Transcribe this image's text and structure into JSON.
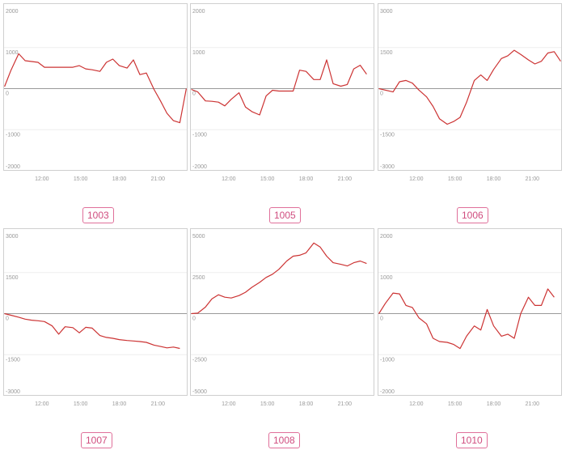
{
  "chart_data": [
    {
      "type": "line",
      "label": "1003",
      "color": "#cc3333",
      "ylim": [
        -2000,
        2000
      ],
      "yticks": [
        2000,
        1000,
        0,
        -1000,
        -2000
      ],
      "xlim": [
        9.0,
        23.3
      ],
      "xticks": [
        {
          "x": 12,
          "label": "12:00"
        },
        {
          "x": 15,
          "label": "15:00"
        },
        {
          "x": 18,
          "label": "18:00"
        },
        {
          "x": 21,
          "label": "21:00"
        }
      ],
      "x": [
        9.1,
        9.6,
        10.2,
        10.7,
        11.2,
        11.7,
        12.2,
        12.8,
        13.3,
        13.8,
        14.4,
        14.9,
        15.4,
        15.9,
        16.5,
        17.0,
        17.5,
        18.0,
        18.6,
        19.1,
        19.6,
        20.1,
        20.7,
        21.2,
        21.7,
        22.2,
        22.7,
        23.2
      ],
      "values": [
        50,
        450,
        850,
        680,
        660,
        640,
        520,
        520,
        520,
        520,
        520,
        560,
        480,
        460,
        420,
        640,
        720,
        560,
        500,
        700,
        340,
        380,
        -20,
        -300,
        -600,
        -780,
        -830,
        0
      ]
    },
    {
      "type": "line",
      "label": "1005",
      "color": "#cc3333",
      "ylim": [
        -2000,
        2000
      ],
      "yticks": [
        2000,
        1000,
        0,
        -1000,
        -2000
      ],
      "xlim": [
        9.0,
        23.3
      ],
      "xticks": [
        {
          "x": 12,
          "label": "12:00"
        },
        {
          "x": 15,
          "label": "15:00"
        },
        {
          "x": 18,
          "label": "18:00"
        },
        {
          "x": 21,
          "label": "21:00"
        }
      ],
      "x": [
        9.1,
        9.6,
        10.2,
        10.7,
        11.2,
        11.7,
        12.2,
        12.8,
        13.3,
        13.8,
        14.4,
        14.9,
        15.4,
        15.9,
        16.5,
        17.0,
        17.5,
        18.0,
        18.6,
        19.1,
        19.6,
        20.1,
        20.7,
        21.2,
        21.7,
        22.2,
        22.7
      ],
      "values": [
        -20,
        -80,
        -300,
        -310,
        -330,
        -420,
        -260,
        -100,
        -450,
        -560,
        -640,
        -180,
        -40,
        -60,
        -60,
        -60,
        450,
        420,
        220,
        220,
        700,
        120,
        60,
        100,
        480,
        570,
        350
      ]
    },
    {
      "type": "line",
      "label": "1006",
      "color": "#cc3333",
      "ylim": [
        -3000,
        3000
      ],
      "yticks": [
        3000,
        1500,
        0,
        -1500,
        -3000
      ],
      "xlim": [
        9.0,
        23.3
      ],
      "xticks": [
        {
          "x": 12,
          "label": "12:00"
        },
        {
          "x": 15,
          "label": "15:00"
        },
        {
          "x": 18,
          "label": "18:00"
        },
        {
          "x": 21,
          "label": "21:00"
        }
      ],
      "x": [
        9.1,
        10.2,
        10.7,
        11.2,
        11.7,
        12.2,
        12.8,
        13.3,
        13.8,
        14.4,
        14.9,
        15.4,
        15.9,
        16.5,
        17.0,
        17.5,
        18.0,
        18.6,
        19.1,
        19.6,
        20.1,
        20.7,
        21.2,
        21.7,
        22.2,
        22.7,
        23.2
      ],
      "values": [
        0,
        -120,
        250,
        300,
        200,
        -50,
        -300,
        -650,
        -1100,
        -1300,
        -1200,
        -1050,
        -500,
        300,
        500,
        300,
        700,
        1100,
        1200,
        1400,
        1250,
        1050,
        900,
        1000,
        1300,
        1350,
        1000
      ]
    },
    {
      "type": "line",
      "label": "1007",
      "color": "#cc3333",
      "ylim": [
        -3000,
        3000
      ],
      "yticks": [
        3000,
        1500,
        0,
        -1500,
        -3000
      ],
      "xlim": [
        9.0,
        23.3
      ],
      "xticks": [
        {
          "x": 12,
          "label": "12:00"
        },
        {
          "x": 15,
          "label": "15:00"
        },
        {
          "x": 18,
          "label": "18:00"
        },
        {
          "x": 21,
          "label": "21:00"
        }
      ],
      "x": [
        9.1,
        9.6,
        10.2,
        10.7,
        11.2,
        11.7,
        12.2,
        12.8,
        13.3,
        13.8,
        14.4,
        14.9,
        15.4,
        15.9,
        16.5,
        17.0,
        17.5,
        18.0,
        18.6,
        19.1,
        19.6,
        20.1,
        20.7,
        21.2,
        21.7,
        22.2,
        22.7
      ],
      "values": [
        0,
        -60,
        -130,
        -200,
        -240,
        -260,
        -290,
        -450,
        -750,
        -480,
        -510,
        -700,
        -500,
        -530,
        -800,
        -870,
        -900,
        -950,
        -980,
        -1000,
        -1020,
        -1050,
        -1150,
        -1200,
        -1250,
        -1220,
        -1270
      ]
    },
    {
      "type": "line",
      "label": "1008",
      "color": "#cc3333",
      "ylim": [
        -5000,
        5000
      ],
      "yticks": [
        5000,
        2500,
        0,
        -2500,
        -5000
      ],
      "xlim": [
        9.0,
        23.3
      ],
      "xticks": [
        {
          "x": 12,
          "label": "12:00"
        },
        {
          "x": 15,
          "label": "15:00"
        },
        {
          "x": 18,
          "label": "18:00"
        },
        {
          "x": 21,
          "label": "21:00"
        }
      ],
      "x": [
        9.1,
        9.6,
        10.2,
        10.7,
        11.2,
        11.7,
        12.2,
        12.8,
        13.3,
        13.8,
        14.4,
        14.9,
        15.4,
        15.9,
        16.5,
        17.0,
        17.5,
        18.0,
        18.6,
        19.1,
        19.6,
        20.1,
        20.7,
        21.2,
        21.7,
        22.2,
        22.7
      ],
      "values": [
        0,
        30,
        400,
        900,
        1150,
        1000,
        950,
        1100,
        1300,
        1600,
        1900,
        2200,
        2400,
        2700,
        3200,
        3500,
        3550,
        3700,
        4300,
        4050,
        3500,
        3100,
        3000,
        2900,
        3100,
        3200,
        3050
      ]
    },
    {
      "type": "line",
      "label": "1010",
      "color": "#cc3333",
      "ylim": [
        -2000,
        2000
      ],
      "yticks": [
        2000,
        1000,
        0,
        -1000,
        -2000
      ],
      "xlim": [
        9.0,
        23.3
      ],
      "xticks": [
        {
          "x": 12,
          "label": "12:00"
        },
        {
          "x": 15,
          "label": "15:00"
        },
        {
          "x": 18,
          "label": "18:00"
        },
        {
          "x": 21,
          "label": "21:00"
        }
      ],
      "x": [
        9.1,
        9.6,
        10.2,
        10.7,
        11.2,
        11.7,
        12.2,
        12.8,
        13.3,
        13.8,
        14.4,
        14.9,
        15.4,
        15.9,
        16.5,
        17.0,
        17.5,
        18.0,
        18.6,
        19.1,
        19.6,
        20.1,
        20.7,
        21.2,
        21.7,
        22.2,
        22.7
      ],
      "values": [
        0,
        250,
        500,
        480,
        200,
        150,
        -100,
        -250,
        -600,
        -680,
        -700,
        -750,
        -850,
        -550,
        -300,
        -400,
        100,
        -300,
        -550,
        -500,
        -600,
        0,
        400,
        200,
        200,
        600,
        400
      ]
    }
  ]
}
